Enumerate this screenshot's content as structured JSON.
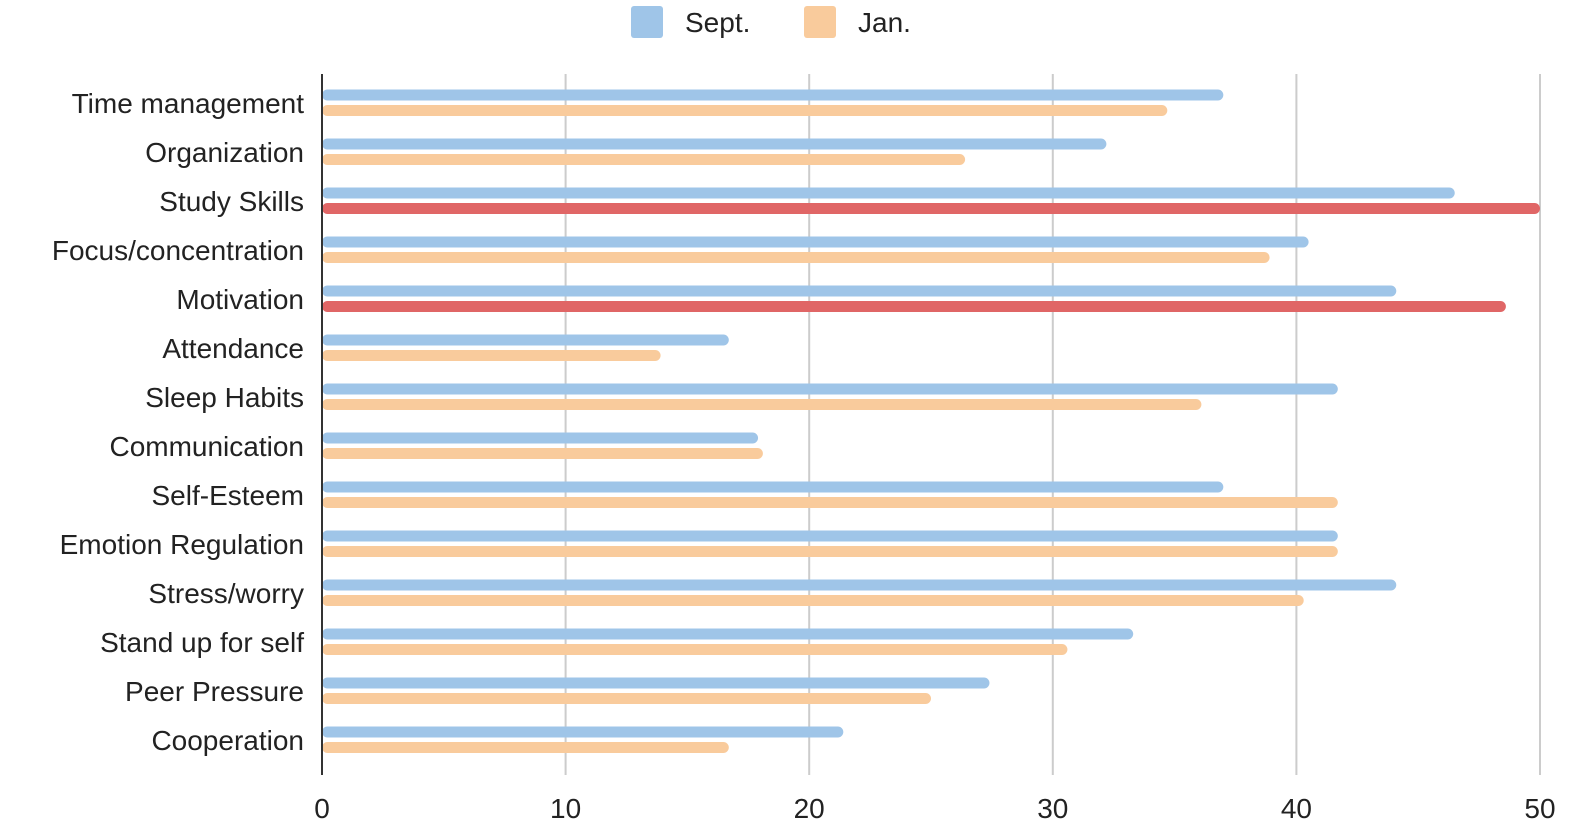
{
  "chart_data": {
    "type": "bar",
    "orientation": "horizontal",
    "categories": [
      "Time management",
      "Organization",
      "Study Skills",
      "Focus/concentration",
      "Motivation",
      "Attendance",
      "Sleep Habits",
      "Communication",
      "Self-Esteem",
      "Emotion Regulation",
      "Stress/worry",
      "Stand up for self",
      "Peer Pressure",
      "Cooperation"
    ],
    "series": [
      {
        "name": "Sept.",
        "color": "#9fc5e8",
        "values": [
          37,
          32.2,
          46.5,
          40.5,
          44.1,
          16.7,
          41.7,
          17.9,
          37,
          41.7,
          44.1,
          33.3,
          27.4,
          21.4
        ]
      },
      {
        "name": "Jan.",
        "color": "#f9cb9c",
        "values": [
          34.7,
          26.4,
          50,
          38.9,
          48.6,
          13.9,
          36.1,
          18.1,
          41.7,
          41.7,
          40.3,
          30.6,
          25,
          16.7
        ]
      }
    ],
    "highlight": {
      "color": "#e06666",
      "series": "Jan.",
      "categories": [
        "Study Skills",
        "Motivation"
      ]
    },
    "xlim": [
      0,
      50
    ],
    "xticks": [
      0,
      10,
      20,
      30,
      40,
      50
    ],
    "grid": true,
    "legend_position": "top-center",
    "title": "",
    "xlabel": "",
    "ylabel": ""
  }
}
